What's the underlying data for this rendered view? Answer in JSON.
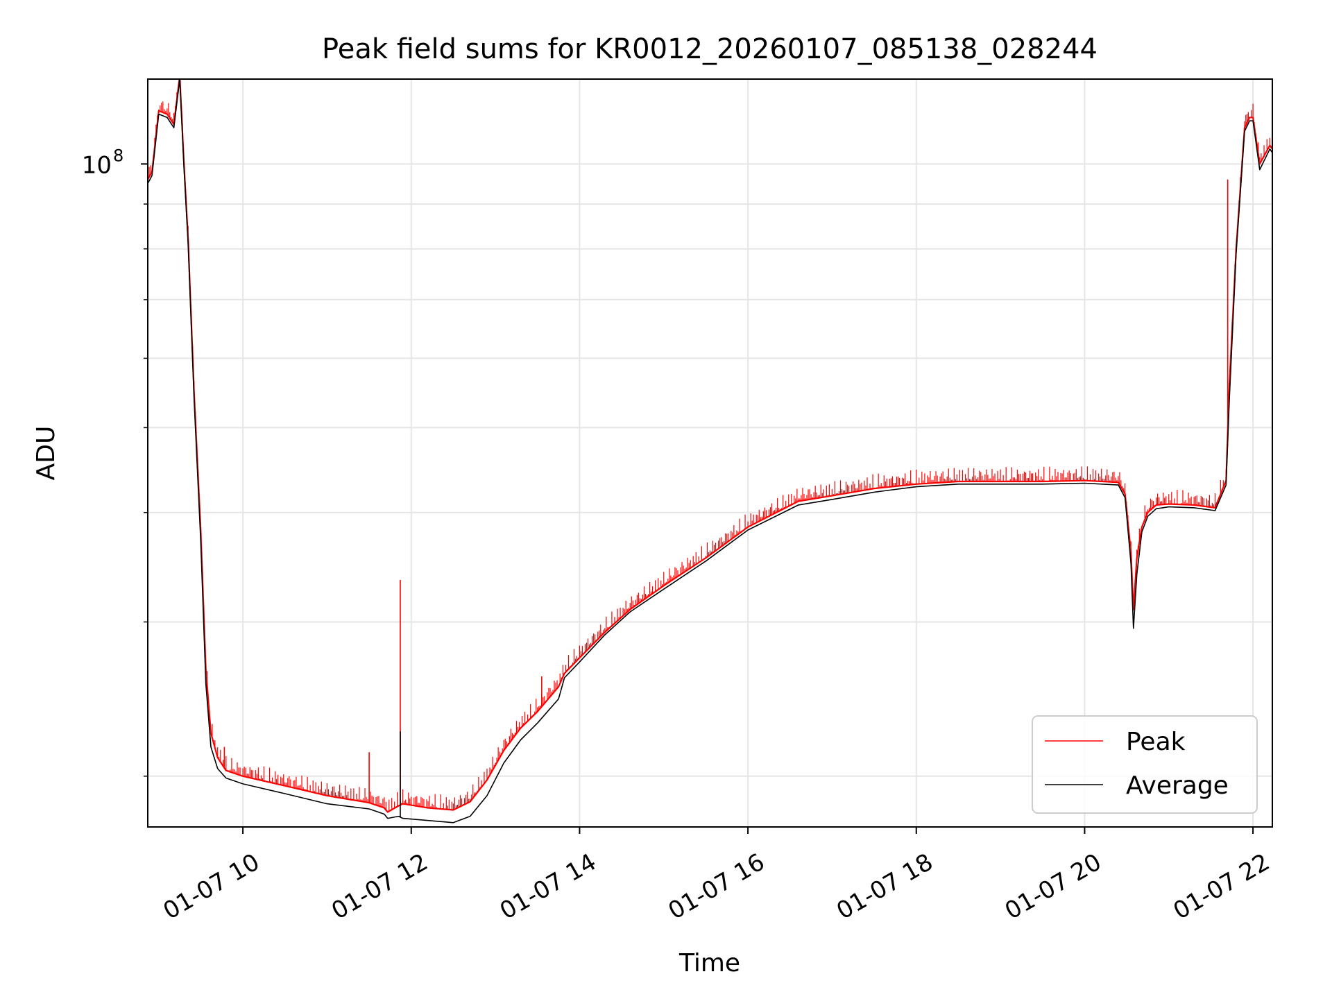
{
  "chart_data": {
    "type": "line",
    "title": "Peak field sums for KR0012_20260107_085138_028244",
    "xlabel": "Time",
    "ylabel": "ADU",
    "yscale": "log",
    "ylim": [
      17500000,
      125000000
    ],
    "xlim": [
      8.87,
      22.23
    ],
    "grid": true,
    "x_ticks": [
      {
        "value": 10,
        "label": "01-07 10"
      },
      {
        "value": 12,
        "label": "01-07 12"
      },
      {
        "value": 14,
        "label": "01-07 14"
      },
      {
        "value": 16,
        "label": "01-07 16"
      },
      {
        "value": 18,
        "label": "01-07 18"
      },
      {
        "value": 20,
        "label": "01-07 20"
      },
      {
        "value": 22,
        "label": "01-07 22"
      }
    ],
    "y_major_tick": {
      "value": 100000000,
      "base": "10",
      "exponent": "8"
    },
    "y_minor_ticks": [
      20000000,
      30000000,
      40000000,
      50000000,
      60000000,
      70000000,
      80000000,
      90000000
    ],
    "legend": {
      "position": "lower-right",
      "entries": [
        "Peak",
        "Average"
      ]
    },
    "series": [
      {
        "name": "Peak",
        "color": "#ff0000",
        "x": [
          8.87,
          8.92,
          9.0,
          9.1,
          9.18,
          9.25,
          9.3,
          9.35,
          9.42,
          9.5,
          9.56,
          9.62,
          9.7,
          9.8,
          10.0,
          10.5,
          11.0,
          11.5,
          11.68,
          11.72,
          11.85,
          11.9,
          12.2,
          12.5,
          12.7,
          12.9,
          13.1,
          13.3,
          13.5,
          13.75,
          13.82,
          14.0,
          14.3,
          14.6,
          15.0,
          15.5,
          16.0,
          16.6,
          17.0,
          17.5,
          18.0,
          18.5,
          19.0,
          19.5,
          20.0,
          20.4,
          20.48,
          20.55,
          20.58,
          20.62,
          20.68,
          20.75,
          20.85,
          21.0,
          21.3,
          21.55,
          21.68,
          21.72,
          21.8,
          21.9,
          21.96,
          22.0,
          22.08,
          22.2,
          22.23
        ],
        "y": [
          96000000,
          98000000,
          115000000,
          114000000,
          111000000,
          126000000,
          100000000,
          82000000,
          55000000,
          38000000,
          26500000,
          22400000,
          21000000,
          20300000,
          20000000,
          19500000,
          19000000,
          18650000,
          18400000,
          18200000,
          18500000,
          18600000,
          18400000,
          18300000,
          18700000,
          19800000,
          21400000,
          22700000,
          23700000,
          25300000,
          26200000,
          27300000,
          29200000,
          31000000,
          33000000,
          35500000,
          38500000,
          41200000,
          41800000,
          42600000,
          43100000,
          43400000,
          43400000,
          43400000,
          43500000,
          43300000,
          42000000,
          36000000,
          31000000,
          35500000,
          38500000,
          40000000,
          40800000,
          40900000,
          40800000,
          40500000,
          43500000,
          56000000,
          80000000,
          110000000,
          113000000,
          113000000,
          100000000,
          105000000,
          104000000
        ],
        "spikes": [
          {
            "x": 9.78,
            "y": 21600000
          },
          {
            "x": 11.5,
            "y": 21300000
          },
          {
            "x": 11.87,
            "y": 33500000
          },
          {
            "x": 13.55,
            "y": 26000000
          },
          {
            "x": 21.7,
            "y": 96000000
          }
        ]
      },
      {
        "name": "Average",
        "color": "#000000",
        "x": [
          8.87,
          8.92,
          9.0,
          9.1,
          9.18,
          9.25,
          9.3,
          9.35,
          9.42,
          9.5,
          9.56,
          9.62,
          9.7,
          9.8,
          10.0,
          10.5,
          11.0,
          11.5,
          11.68,
          11.72,
          11.85,
          11.9,
          12.2,
          12.5,
          12.7,
          12.9,
          13.1,
          13.3,
          13.5,
          13.75,
          13.82,
          14.0,
          14.3,
          14.6,
          15.0,
          15.5,
          16.0,
          16.6,
          17.0,
          17.5,
          18.0,
          18.5,
          19.0,
          19.5,
          20.0,
          20.4,
          20.48,
          20.55,
          20.58,
          20.62,
          20.68,
          20.75,
          20.85,
          21.0,
          21.3,
          21.55,
          21.68,
          21.72,
          21.8,
          21.9,
          21.96,
          22.0,
          22.08,
          22.2,
          22.23
        ],
        "y": [
          95000000,
          97000000,
          114000000,
          113000000,
          110000000,
          125000000,
          99000000,
          81000000,
          54000000,
          37000000,
          25500000,
          21600000,
          20400000,
          19900000,
          19600000,
          19100000,
          18600000,
          18350000,
          18100000,
          17900000,
          18000000,
          17900000,
          17800000,
          17700000,
          18000000,
          19000000,
          20700000,
          22000000,
          23000000,
          24500000,
          25900000,
          27000000,
          29000000,
          30800000,
          32700000,
          35200000,
          38200000,
          40800000,
          41400000,
          42200000,
          42800000,
          43100000,
          43100000,
          43100000,
          43200000,
          43000000,
          41600000,
          35000000,
          29500000,
          34000000,
          38000000,
          39600000,
          40400000,
          40600000,
          40500000,
          40200000,
          43000000,
          54000000,
          79000000,
          109000000,
          112000000,
          112000000,
          98500000,
          104000000,
          103000000
        ],
        "spikes": [
          {
            "x": 11.87,
            "y": 22500000
          }
        ]
      }
    ]
  }
}
